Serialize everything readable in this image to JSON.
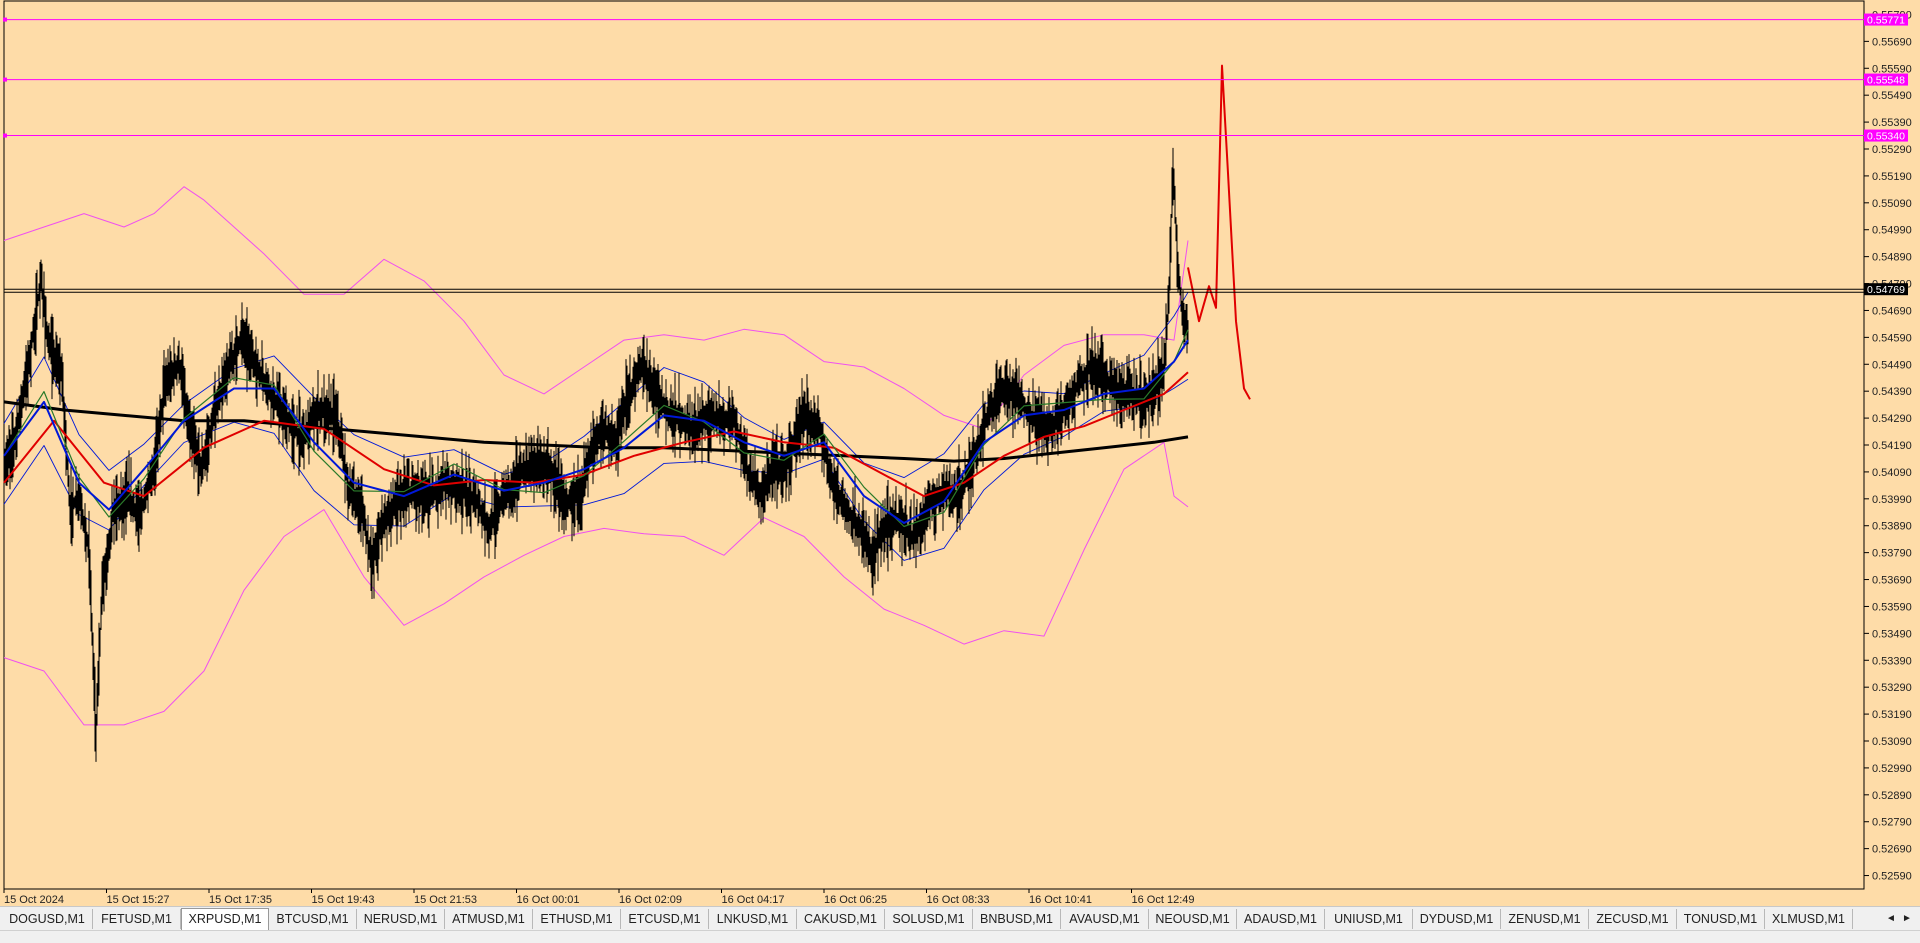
{
  "chart_data": {
    "type": "candlestick",
    "symbol": "XRPUSD",
    "timeframe": "M1",
    "y_axis": {
      "min": 0.5254,
      "max": 0.5584,
      "ticks": [
        "0.55790",
        "0.55690",
        "0.55590",
        "0.55490",
        "0.55390",
        "0.55290",
        "0.55190",
        "0.55090",
        "0.54990",
        "0.54890",
        "0.54790",
        "0.54690",
        "0.54590",
        "0.54490",
        "0.54390",
        "0.54290",
        "0.54190",
        "0.54090",
        "0.53990",
        "0.53890",
        "0.53790",
        "0.53690",
        "0.53590",
        "0.53490",
        "0.53390",
        "0.53290",
        "0.53190",
        "0.53090",
        "0.52990",
        "0.52890",
        "0.52790",
        "0.52690",
        "0.52590"
      ]
    },
    "x_axis": {
      "labels": [
        "15 Oct 2024",
        "15 Oct 15:27",
        "15 Oct 17:35",
        "15 Oct 19:43",
        "15 Oct 21:53",
        "16 Oct 00:01",
        "16 Oct 02:09",
        "16 Oct 04:17",
        "16 Oct 06:25",
        "16 Oct 08:33",
        "16 Oct 10:41",
        "16 Oct 12:49"
      ]
    },
    "horizontal_lines": [
      {
        "price": 0.55771,
        "label": "0.55771",
        "color": "#ff00ff"
      },
      {
        "price": 0.55548,
        "label": "0.55548",
        "color": "#ff00ff"
      },
      {
        "price": 0.5534,
        "label": "0.55340",
        "color": "#ff00ff"
      },
      {
        "price": 0.54769,
        "label": "0.54769",
        "color": "#000000"
      }
    ],
    "price_path": [
      [
        0,
        0.541
      ],
      [
        10,
        0.542
      ],
      [
        25,
        0.545
      ],
      [
        37,
        0.548
      ],
      [
        45,
        0.5455
      ],
      [
        58,
        0.5445
      ],
      [
        66,
        0.5395
      ],
      [
        75,
        0.54
      ],
      [
        85,
        0.538
      ],
      [
        92,
        0.5312
      ],
      [
        98,
        0.5365
      ],
      [
        110,
        0.5395
      ],
      [
        125,
        0.54
      ],
      [
        135,
        0.5392
      ],
      [
        150,
        0.541
      ],
      [
        160,
        0.544
      ],
      [
        175,
        0.545
      ],
      [
        185,
        0.5425
      ],
      [
        198,
        0.541
      ],
      [
        210,
        0.543
      ],
      [
        222,
        0.5445
      ],
      [
        238,
        0.546
      ],
      [
        252,
        0.5448
      ],
      [
        268,
        0.5438
      ],
      [
        282,
        0.5428
      ],
      [
        298,
        0.5422
      ],
      [
        315,
        0.5432
      ],
      [
        332,
        0.543
      ],
      [
        345,
        0.5402
      ],
      [
        358,
        0.5395
      ],
      [
        368,
        0.5375
      ],
      [
        378,
        0.539
      ],
      [
        393,
        0.5398
      ],
      [
        408,
        0.5402
      ],
      [
        425,
        0.54
      ],
      [
        442,
        0.5405
      ],
      [
        458,
        0.5402
      ],
      [
        473,
        0.5398
      ],
      [
        485,
        0.5388
      ],
      [
        500,
        0.54
      ],
      [
        515,
        0.5408
      ],
      [
        530,
        0.5412
      ],
      [
        545,
        0.541
      ],
      [
        562,
        0.5398
      ],
      [
        578,
        0.5402
      ],
      [
        588,
        0.5418
      ],
      [
        600,
        0.5425
      ],
      [
        612,
        0.542
      ],
      [
        625,
        0.5438
      ],
      [
        638,
        0.5448
      ],
      [
        650,
        0.544
      ],
      [
        662,
        0.5432
      ],
      [
        678,
        0.5428
      ],
      [
        692,
        0.5425
      ],
      [
        705,
        0.543
      ],
      [
        718,
        0.5428
      ],
      [
        730,
        0.543
      ],
      [
        745,
        0.5408
      ],
      [
        758,
        0.54
      ],
      [
        770,
        0.5412
      ],
      [
        782,
        0.541
      ],
      [
        792,
        0.5422
      ],
      [
        800,
        0.543
      ],
      [
        815,
        0.5425
      ],
      [
        828,
        0.5405
      ],
      [
        842,
        0.5395
      ],
      [
        855,
        0.5388
      ],
      [
        868,
        0.5378
      ],
      [
        880,
        0.5388
      ],
      [
        895,
        0.5392
      ],
      [
        908,
        0.5385
      ],
      [
        918,
        0.539
      ],
      [
        928,
        0.5398
      ],
      [
        940,
        0.5402
      ],
      [
        952,
        0.54
      ],
      [
        965,
        0.5408
      ],
      [
        975,
        0.542
      ],
      [
        985,
        0.5432
      ],
      [
        998,
        0.544
      ],
      [
        1012,
        0.5438
      ],
      [
        1025,
        0.543
      ],
      [
        1038,
        0.5428
      ],
      [
        1048,
        0.5425
      ],
      [
        1060,
        0.5432
      ],
      [
        1072,
        0.544
      ],
      [
        1085,
        0.5448
      ],
      [
        1098,
        0.5445
      ],
      [
        1110,
        0.544
      ],
      [
        1125,
        0.5438
      ],
      [
        1140,
        0.5435
      ],
      [
        1152,
        0.544
      ],
      [
        1160,
        0.5448
      ],
      [
        1165,
        0.5475
      ],
      [
        1169,
        0.5522
      ],
      [
        1173,
        0.549
      ],
      [
        1178,
        0.547
      ],
      [
        1184,
        0.5462
      ]
    ],
    "projection_path": [
      [
        1184,
        0.5485
      ],
      [
        1195,
        0.5465
      ],
      [
        1205,
        0.5478
      ],
      [
        1212,
        0.547
      ],
      [
        1218,
        0.556
      ],
      [
        1224,
        0.552
      ],
      [
        1232,
        0.5465
      ],
      [
        1240,
        0.544
      ],
      [
        1246,
        0.5436
      ]
    ],
    "ma_fast_blue": [
      [
        0,
        0.5415
      ],
      [
        40,
        0.5435
      ],
      [
        75,
        0.5405
      ],
      [
        105,
        0.5395
      ],
      [
        140,
        0.541
      ],
      [
        180,
        0.5428
      ],
      [
        230,
        0.544
      ],
      [
        270,
        0.544
      ],
      [
        310,
        0.542
      ],
      [
        350,
        0.5405
      ],
      [
        400,
        0.54
      ],
      [
        450,
        0.5408
      ],
      [
        500,
        0.5402
      ],
      [
        540,
        0.5405
      ],
      [
        580,
        0.541
      ],
      [
        620,
        0.5418
      ],
      [
        660,
        0.543
      ],
      [
        700,
        0.5428
      ],
      [
        740,
        0.542
      ],
      [
        780,
        0.5415
      ],
      [
        820,
        0.542
      ],
      [
        860,
        0.54
      ],
      [
        900,
        0.539
      ],
      [
        940,
        0.5398
      ],
      [
        980,
        0.542
      ],
      [
        1020,
        0.543
      ],
      [
        1060,
        0.5432
      ],
      [
        1100,
        0.5438
      ],
      [
        1140,
        0.544
      ],
      [
        1170,
        0.545
      ],
      [
        1184,
        0.5458
      ]
    ],
    "ma_mid_red": [
      [
        0,
        0.5405
      ],
      [
        50,
        0.5428
      ],
      [
        100,
        0.5405
      ],
      [
        140,
        0.54
      ],
      [
        200,
        0.5418
      ],
      [
        260,
        0.5428
      ],
      [
        320,
        0.5425
      ],
      [
        380,
        0.541
      ],
      [
        430,
        0.5404
      ],
      [
        480,
        0.5406
      ],
      [
        530,
        0.5405
      ],
      [
        580,
        0.5408
      ],
      [
        630,
        0.5415
      ],
      [
        680,
        0.542
      ],
      [
        730,
        0.5424
      ],
      [
        780,
        0.542
      ],
      [
        830,
        0.5418
      ],
      [
        880,
        0.5408
      ],
      [
        920,
        0.54
      ],
      [
        960,
        0.5405
      ],
      [
        1000,
        0.5415
      ],
      [
        1040,
        0.5422
      ],
      [
        1080,
        0.5426
      ],
      [
        1120,
        0.5432
      ],
      [
        1160,
        0.5438
      ],
      [
        1184,
        0.5446
      ]
    ],
    "ma_slow_black": [
      [
        0,
        0.5435
      ],
      [
        60,
        0.5432
      ],
      [
        120,
        0.543
      ],
      [
        180,
        0.5428
      ],
      [
        240,
        0.5428
      ],
      [
        300,
        0.5426
      ],
      [
        360,
        0.5424
      ],
      [
        420,
        0.5422
      ],
      [
        480,
        0.542
      ],
      [
        540,
        0.5419
      ],
      [
        600,
        0.5418
      ],
      [
        660,
        0.5418
      ],
      [
        720,
        0.5417
      ],
      [
        780,
        0.5416
      ],
      [
        840,
        0.5415
      ],
      [
        900,
        0.5414
      ],
      [
        950,
        0.5413
      ],
      [
        1000,
        0.5414
      ],
      [
        1050,
        0.5416
      ],
      [
        1100,
        0.5418
      ],
      [
        1150,
        0.542
      ],
      [
        1184,
        0.5422
      ]
    ],
    "bb_upper_magenta": [
      [
        0,
        0.5495
      ],
      [
        40,
        0.55
      ],
      [
        80,
        0.5505
      ],
      [
        120,
        0.55
      ],
      [
        150,
        0.5505
      ],
      [
        180,
        0.5515
      ],
      [
        200,
        0.551
      ],
      [
        230,
        0.55
      ],
      [
        260,
        0.549
      ],
      [
        300,
        0.5475
      ],
      [
        340,
        0.5475
      ],
      [
        380,
        0.5488
      ],
      [
        420,
        0.548
      ],
      [
        460,
        0.5465
      ],
      [
        500,
        0.5445
      ],
      [
        540,
        0.5438
      ],
      [
        580,
        0.5448
      ],
      [
        620,
        0.5458
      ],
      [
        660,
        0.546
      ],
      [
        700,
        0.5458
      ],
      [
        740,
        0.5462
      ],
      [
        780,
        0.546
      ],
      [
        820,
        0.545
      ],
      [
        860,
        0.5448
      ],
      [
        900,
        0.544
      ],
      [
        940,
        0.543
      ],
      [
        980,
        0.5425
      ],
      [
        1020,
        0.5445
      ],
      [
        1060,
        0.5456
      ],
      [
        1100,
        0.546
      ],
      [
        1140,
        0.546
      ],
      [
        1170,
        0.5458
      ],
      [
        1184,
        0.5495
      ]
    ],
    "bb_lower_magenta": [
      [
        0,
        0.534
      ],
      [
        40,
        0.5335
      ],
      [
        80,
        0.5315
      ],
      [
        120,
        0.5315
      ],
      [
        160,
        0.532
      ],
      [
        200,
        0.5335
      ],
      [
        240,
        0.5365
      ],
      [
        280,
        0.5385
      ],
      [
        320,
        0.5395
      ],
      [
        360,
        0.537
      ],
      [
        400,
        0.5352
      ],
      [
        440,
        0.536
      ],
      [
        480,
        0.537
      ],
      [
        520,
        0.5378
      ],
      [
        560,
        0.5385
      ],
      [
        600,
        0.5388
      ],
      [
        640,
        0.5386
      ],
      [
        680,
        0.5385
      ],
      [
        720,
        0.5378
      ],
      [
        760,
        0.5392
      ],
      [
        800,
        0.5385
      ],
      [
        840,
        0.537
      ],
      [
        880,
        0.5358
      ],
      [
        920,
        0.5352
      ],
      [
        960,
        0.5345
      ],
      [
        1000,
        0.535
      ],
      [
        1040,
        0.5348
      ],
      [
        1080,
        0.538
      ],
      [
        1120,
        0.541
      ],
      [
        1160,
        0.542
      ],
      [
        1170,
        0.54
      ],
      [
        1184,
        0.5396
      ]
    ]
  },
  "tabs": [
    "DOGUSD,M1",
    "FETUSD,M1",
    "XRPUSD,M1",
    "BTCUSD,M1",
    "NERUSD,M1",
    "ATMUSD,M1",
    "ETHUSD,M1",
    "ETCUSD,M1",
    "LNKUSD,M1",
    "CAKUSD,M1",
    "SOLUSD,M1",
    "BNBUSD,M1",
    "AVAUSD,M1",
    "NEOUSD,M1",
    "ADAUSD,M1",
    "UNIUSD,M1",
    "DYDUSD,M1",
    "ZENUSD,M1",
    "ZECUSD,M1",
    "TONUSD,M1",
    "XLMUSD,M1"
  ],
  "active_tab": "XRPUSD,M1",
  "tab_nav": {
    "prev": "◄",
    "next": "►"
  },
  "colors": {
    "background": "#fedca8",
    "candles": "#000000",
    "ma_fast": "#0018d8",
    "ma_mid": "#e00000",
    "ma_slow": "#000000",
    "bollinger": "#f050f0",
    "level_lines": "#ff00ff",
    "projection": "#e00000"
  }
}
